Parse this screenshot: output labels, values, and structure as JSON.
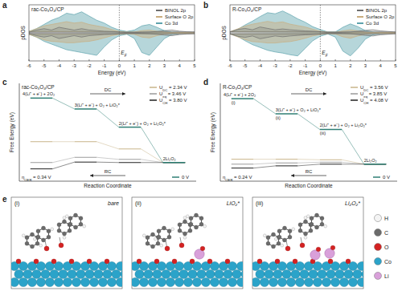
{
  "chart_data": [
    {
      "type": "area",
      "panel_label": "a",
      "title": "rac-Co₃O₄/CP",
      "x_label": "Energy (eV)",
      "y_label": "pDOS",
      "x": [
        -6,
        -5.5,
        -5,
        -4.5,
        -4,
        -3.5,
        -3,
        -2.5,
        -2,
        -1.5,
        -1,
        -0.5,
        0,
        0.5,
        1,
        1.5,
        2,
        2.5,
        3,
        3.5,
        4,
        4.5,
        5
      ],
      "xlim": [
        -6,
        5
      ],
      "xticks": [
        -6,
        -5,
        -4,
        -3,
        -2,
        -1,
        0,
        1,
        2,
        3,
        4,
        5
      ],
      "ylim": [
        -10,
        10
      ],
      "yticks": [],
      "tick_labels": "x",
      "grid": false,
      "legend": "upper right",
      "annotations": [
        {
          "text": "EF",
          "x": 0
        }
      ],
      "series": [
        {
          "name": "BINOL 2p",
          "color": "#6e6e6e",
          "values": [
            0.2,
            1,
            1.5,
            1,
            2,
            1.5,
            1,
            1.5,
            1,
            0.8,
            0.6,
            0.5,
            0.3,
            0.1,
            0.1,
            0.2,
            0.3,
            0.5,
            0.8,
            1,
            0.6,
            0.4,
            0.3
          ],
          "values_down": [
            -0.2,
            -1,
            -1.5,
            -1,
            -2,
            -1.5,
            -1,
            -1.5,
            -1,
            -0.8,
            -0.6,
            -0.5,
            -0.3,
            -0.1,
            -0.1,
            -0.2,
            -0.3,
            -0.5,
            -0.8,
            -1,
            -0.6,
            -0.4,
            -0.3
          ]
        },
        {
          "name": "Surface O 2p",
          "color": "#c9ad7f",
          "values": [
            0.5,
            1.5,
            2.5,
            3,
            3.5,
            4,
            3.5,
            3.8,
            3,
            2.5,
            2,
            1.2,
            0.5,
            0.2,
            0.3,
            0.8,
            1,
            0.6,
            0.3,
            0.1,
            0.1,
            0.1,
            0.1
          ],
          "values_down": [
            -0.5,
            -1.5,
            -2.5,
            -3,
            -3.2,
            -3.5,
            -3.5,
            -3.2,
            -3,
            -2.5,
            -1.8,
            -1,
            -0.5,
            -0.2,
            -0.5,
            -1.5,
            -1.8,
            -1,
            -0.4,
            -0.2,
            -0.1,
            -0.1,
            -0.1
          ]
        },
        {
          "name": "Co 3d",
          "color": "#5ea3ad",
          "values": [
            0.5,
            1.5,
            3,
            4.5,
            5.5,
            7,
            6.5,
            7.5,
            6,
            4.5,
            3.5,
            2,
            1,
            0.5,
            1,
            2.5,
            3,
            2,
            0.8,
            0.3,
            0.2,
            0.1,
            0.1
          ],
          "values_down": [
            -0.5,
            -1.5,
            -3,
            -4,
            -5,
            -6,
            -6.5,
            -7,
            -7.5,
            -8,
            -5,
            -2.5,
            -1,
            -0.5,
            -2,
            -7,
            -8,
            -5,
            -2,
            -0.6,
            -0.3,
            -0.2,
            -0.1
          ]
        }
      ]
    },
    {
      "type": "area",
      "panel_label": "b",
      "title": "R-Co₃O₄/CP",
      "x_label": "Energy (eV)",
      "y_label": "pDOS",
      "x": [
        -6,
        -5.5,
        -5,
        -4.5,
        -4,
        -3.5,
        -3,
        -2.5,
        -2,
        -1.5,
        -1,
        -0.5,
        0,
        0.5,
        1,
        1.5,
        2,
        2.5,
        3,
        3.5,
        4,
        4.5,
        5
      ],
      "xlim": [
        -6,
        5
      ],
      "xticks": [
        -6,
        -5,
        -4,
        -3,
        -2,
        -1,
        0,
        1,
        2,
        3,
        4,
        5
      ],
      "ylim": [
        -10,
        10
      ],
      "yticks": [],
      "tick_labels": "x",
      "grid": false,
      "legend": "upper right",
      "annotations": [
        {
          "text": "EF",
          "x": 0
        }
      ],
      "series": [
        {
          "name": "BINOL 2p",
          "color": "#6e6e6e",
          "values": [
            0.3,
            1.2,
            1.6,
            1.1,
            2.1,
            1.6,
            1.1,
            1.4,
            1.1,
            0.9,
            0.7,
            0.6,
            0.4,
            0.1,
            0.1,
            0.2,
            0.3,
            0.6,
            0.9,
            1.1,
            0.7,
            0.5,
            0.3
          ],
          "values_down": [
            -0.3,
            -1.2,
            -1.6,
            -1.1,
            -2.1,
            -1.6,
            -1.1,
            -1.4,
            -1.1,
            -0.9,
            -0.7,
            -0.6,
            -0.4,
            -0.1,
            -0.1,
            -0.2,
            -0.3,
            -0.6,
            -0.9,
            -1.1,
            -0.7,
            -0.5,
            -0.3
          ]
        },
        {
          "name": "Surface O 2p",
          "color": "#c9ad7f",
          "values": [
            0.4,
            1.4,
            2.4,
            3.1,
            3.6,
            4.1,
            3.6,
            3.9,
            3.1,
            2.6,
            2.1,
            1.3,
            0.6,
            0.2,
            0.2,
            0.7,
            1.1,
            0.7,
            0.3,
            0.1,
            0.1,
            0.1,
            0.1
          ],
          "values_down": [
            -0.4,
            -1.4,
            -2.4,
            -3.1,
            -3.3,
            -3.6,
            -3.6,
            -3.3,
            -3.1,
            -2.6,
            -1.9,
            -1.1,
            -0.6,
            -0.2,
            -0.4,
            -1.4,
            -1.9,
            -1.1,
            -0.5,
            -0.2,
            -0.1,
            -0.1,
            -0.1
          ]
        },
        {
          "name": "Co 3d",
          "color": "#5ea3ad",
          "values": [
            0.4,
            1.2,
            2.8,
            4.2,
            5.8,
            7.2,
            6.8,
            7.8,
            6.5,
            5,
            3.8,
            2.2,
            1.2,
            0.3,
            0.3,
            2,
            3.2,
            2.2,
            0.8,
            0.3,
            0.2,
            0.1,
            0.1
          ],
          "values_down": [
            -0.4,
            -1.2,
            -2.8,
            -4.2,
            -5.2,
            -6.2,
            -6.8,
            -7.2,
            -7.8,
            -8.2,
            -5.5,
            -2.8,
            -1.2,
            -0.4,
            -1.5,
            -6.5,
            -8.2,
            -5.5,
            -2.2,
            -0.7,
            -0.3,
            -0.2,
            -0.1
          ]
        }
      ]
    },
    {
      "type": "step",
      "panel_label": "c",
      "title": "rac-Co₃O₄/CP",
      "x_label": "Reaction Coordinate",
      "y_label": "Free Energy (eV)",
      "categories": [
        "4(Li⁺ + e⁻) + 2O₂",
        "3(Li⁺ + e⁻) + O₂ + LiO₂*",
        "2(Li⁺ + e⁻) + O₂ + Li₂O₂*",
        "2Li₂O₂"
      ],
      "ylim": [
        -4,
        17
      ],
      "yticks": [],
      "tick_labels": false,
      "grid": false,
      "legend": "upper right",
      "overpotential": "ηOER = 0.34 V",
      "arrow_forward": "DC",
      "arrow_reverse": "RC",
      "series": [
        {
          "name": "UDC = 2.34 V",
          "color": "#c9b48a",
          "values": [
            4.48,
            4.48,
            2.92,
            0
          ]
        },
        {
          "name": "Ueq = 3.46 V",
          "color": "#9a9a9a",
          "values": [
            0,
            1.12,
            0.68,
            0
          ]
        },
        {
          "name": "UCH = 3.80 V",
          "color": "#1f1f1f",
          "values": [
            -1.36,
            0.1,
            0,
            0
          ]
        },
        {
          "name": "0 V",
          "color": "#2f7f74",
          "values": [
            13.84,
            11.5,
            7.6,
            0
          ]
        }
      ]
    },
    {
      "type": "step",
      "panel_label": "d",
      "title": "R-Co₃O₄/CP",
      "x_label": "Reaction Coordinate",
      "y_label": "Free Energy (eV)",
      "categories": [
        "4(Li⁺ + e⁻) + 2O₂",
        "3(Li⁺ + e⁻) + O₂ + LiO₂*",
        "2(Li⁺ + e⁻) + O₂ + Li₂O₂*",
        "2Li₂O₂"
      ],
      "state_numbers": [
        "(i)",
        "(ii)",
        "(iii)"
      ],
      "ylim": [
        -4,
        19
      ],
      "yticks": [],
      "tick_labels": false,
      "grid": false,
      "legend": "upper right",
      "overpotential": "ηOER = 0.24 V",
      "arrow_forward": "DC",
      "arrow_reverse": "RC",
      "series": [
        {
          "name": "UDC = 3.56 V",
          "color": "#c9b48a",
          "values": [
            1.16,
            1.16,
            1.04,
            0
          ]
        },
        {
          "name": "Ueq = 3.85 V",
          "color": "#9a9a9a",
          "values": [
            0,
            0.29,
            0.46,
            0
          ]
        },
        {
          "name": "UCH = 4.08 V",
          "color": "#1f1f1f",
          "values": [
            -0.92,
            -0.4,
            0,
            0
          ]
        },
        {
          "name": "0 V",
          "color": "#2f7f74",
          "values": [
            15.4,
            11.84,
            8.16,
            0
          ]
        }
      ]
    }
  ],
  "structures": {
    "panel_label": "e",
    "panels": [
      {
        "number": "(i)",
        "label": "bare"
      },
      {
        "number": "(ii)",
        "label": "LiO₂*"
      },
      {
        "number": "(iii)",
        "label": "Li₂O₂*"
      }
    ],
    "legend": [
      {
        "name": "H",
        "color": "#f4f4f4"
      },
      {
        "name": "C",
        "color": "#6b6b6b"
      },
      {
        "name": "O",
        "color": "#d42222"
      },
      {
        "name": "Co",
        "color": "#2ba3c9"
      },
      {
        "name": "Li",
        "color": "#d9a0da"
      }
    ]
  }
}
